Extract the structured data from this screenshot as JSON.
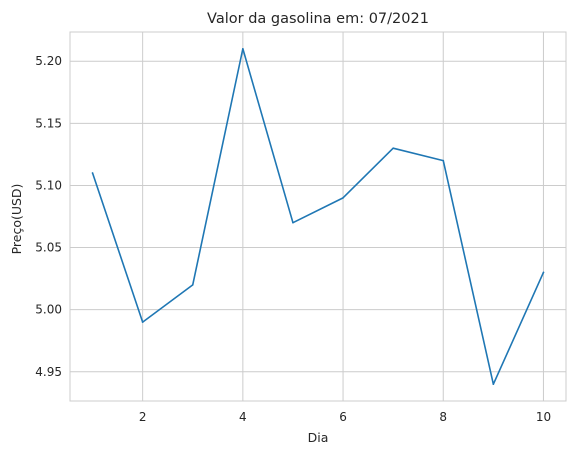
{
  "chart_data": {
    "type": "line",
    "title": "Valor da gasolina em: 07/2021",
    "xlabel": "Dia",
    "ylabel": "Preço(USD)",
    "x": [
      1,
      2,
      3,
      4,
      5,
      6,
      7,
      8,
      9,
      10
    ],
    "series": [
      {
        "values": [
          5.11,
          4.99,
          5.02,
          5.21,
          5.07,
          5.09,
          5.13,
          5.12,
          4.94,
          5.03
        ],
        "color": "#1f77b4"
      }
    ],
    "xlim": [
      0.55,
      10.45
    ],
    "ylim": [
      4.9265,
      5.2235
    ],
    "xticks": [
      2,
      4,
      6,
      8,
      10
    ],
    "xtick_labels": [
      "2",
      "4",
      "6",
      "8",
      "10"
    ],
    "yticks": [
      4.95,
      5.0,
      5.05,
      5.1,
      5.15,
      5.2
    ],
    "ytick_labels": [
      "4.95",
      "5.00",
      "5.05",
      "5.10",
      "5.15",
      "5.20"
    ],
    "grid": true,
    "style": "whitegrid"
  }
}
